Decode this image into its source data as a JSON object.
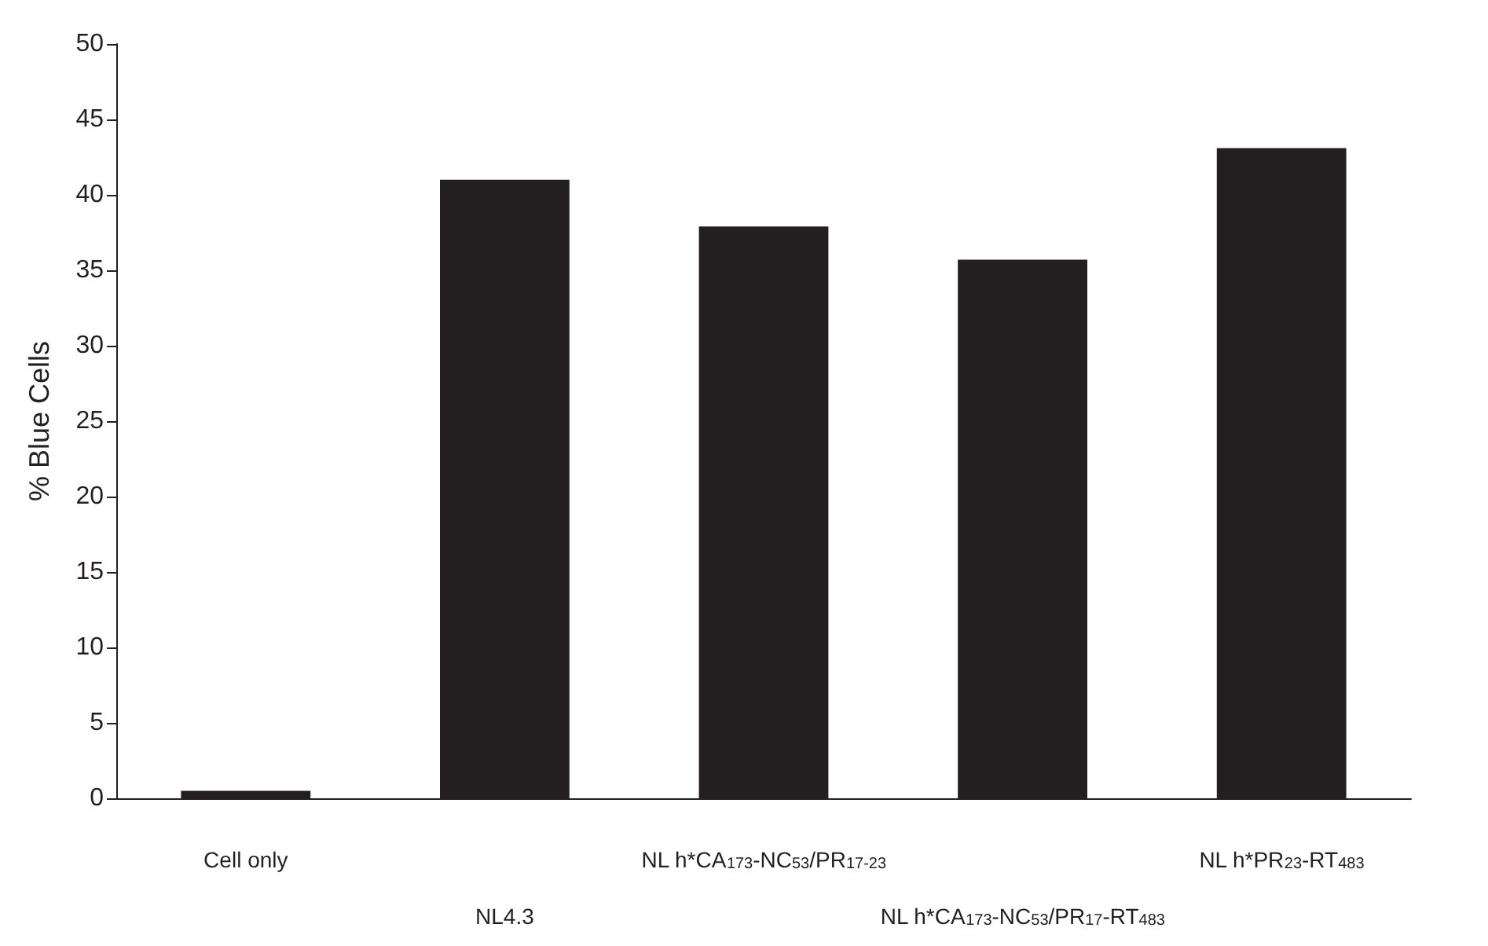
{
  "chart_data": {
    "type": "bar",
    "ylabel": "% Blue Cells",
    "categories": [
      "Cell only",
      "NL4.3",
      "NL h*CA$_{173}$-NC$_{53}$/PR$_{17-23}$",
      "NL h*CA$_{173}$-NC$_{53}$/PR$_{17}$-RT$_{483}$",
      "NL h*PR$_{23}$-RT$_{483}$"
    ],
    "values": [
      0.5,
      41,
      37.9,
      35.7,
      43.1
    ],
    "color": "#231f20",
    "ylim": [
      0,
      50
    ],
    "yticks": [
      0,
      5,
      10,
      15,
      20,
      25,
      30,
      35,
      40,
      45,
      50
    ],
    "grid": false
  }
}
